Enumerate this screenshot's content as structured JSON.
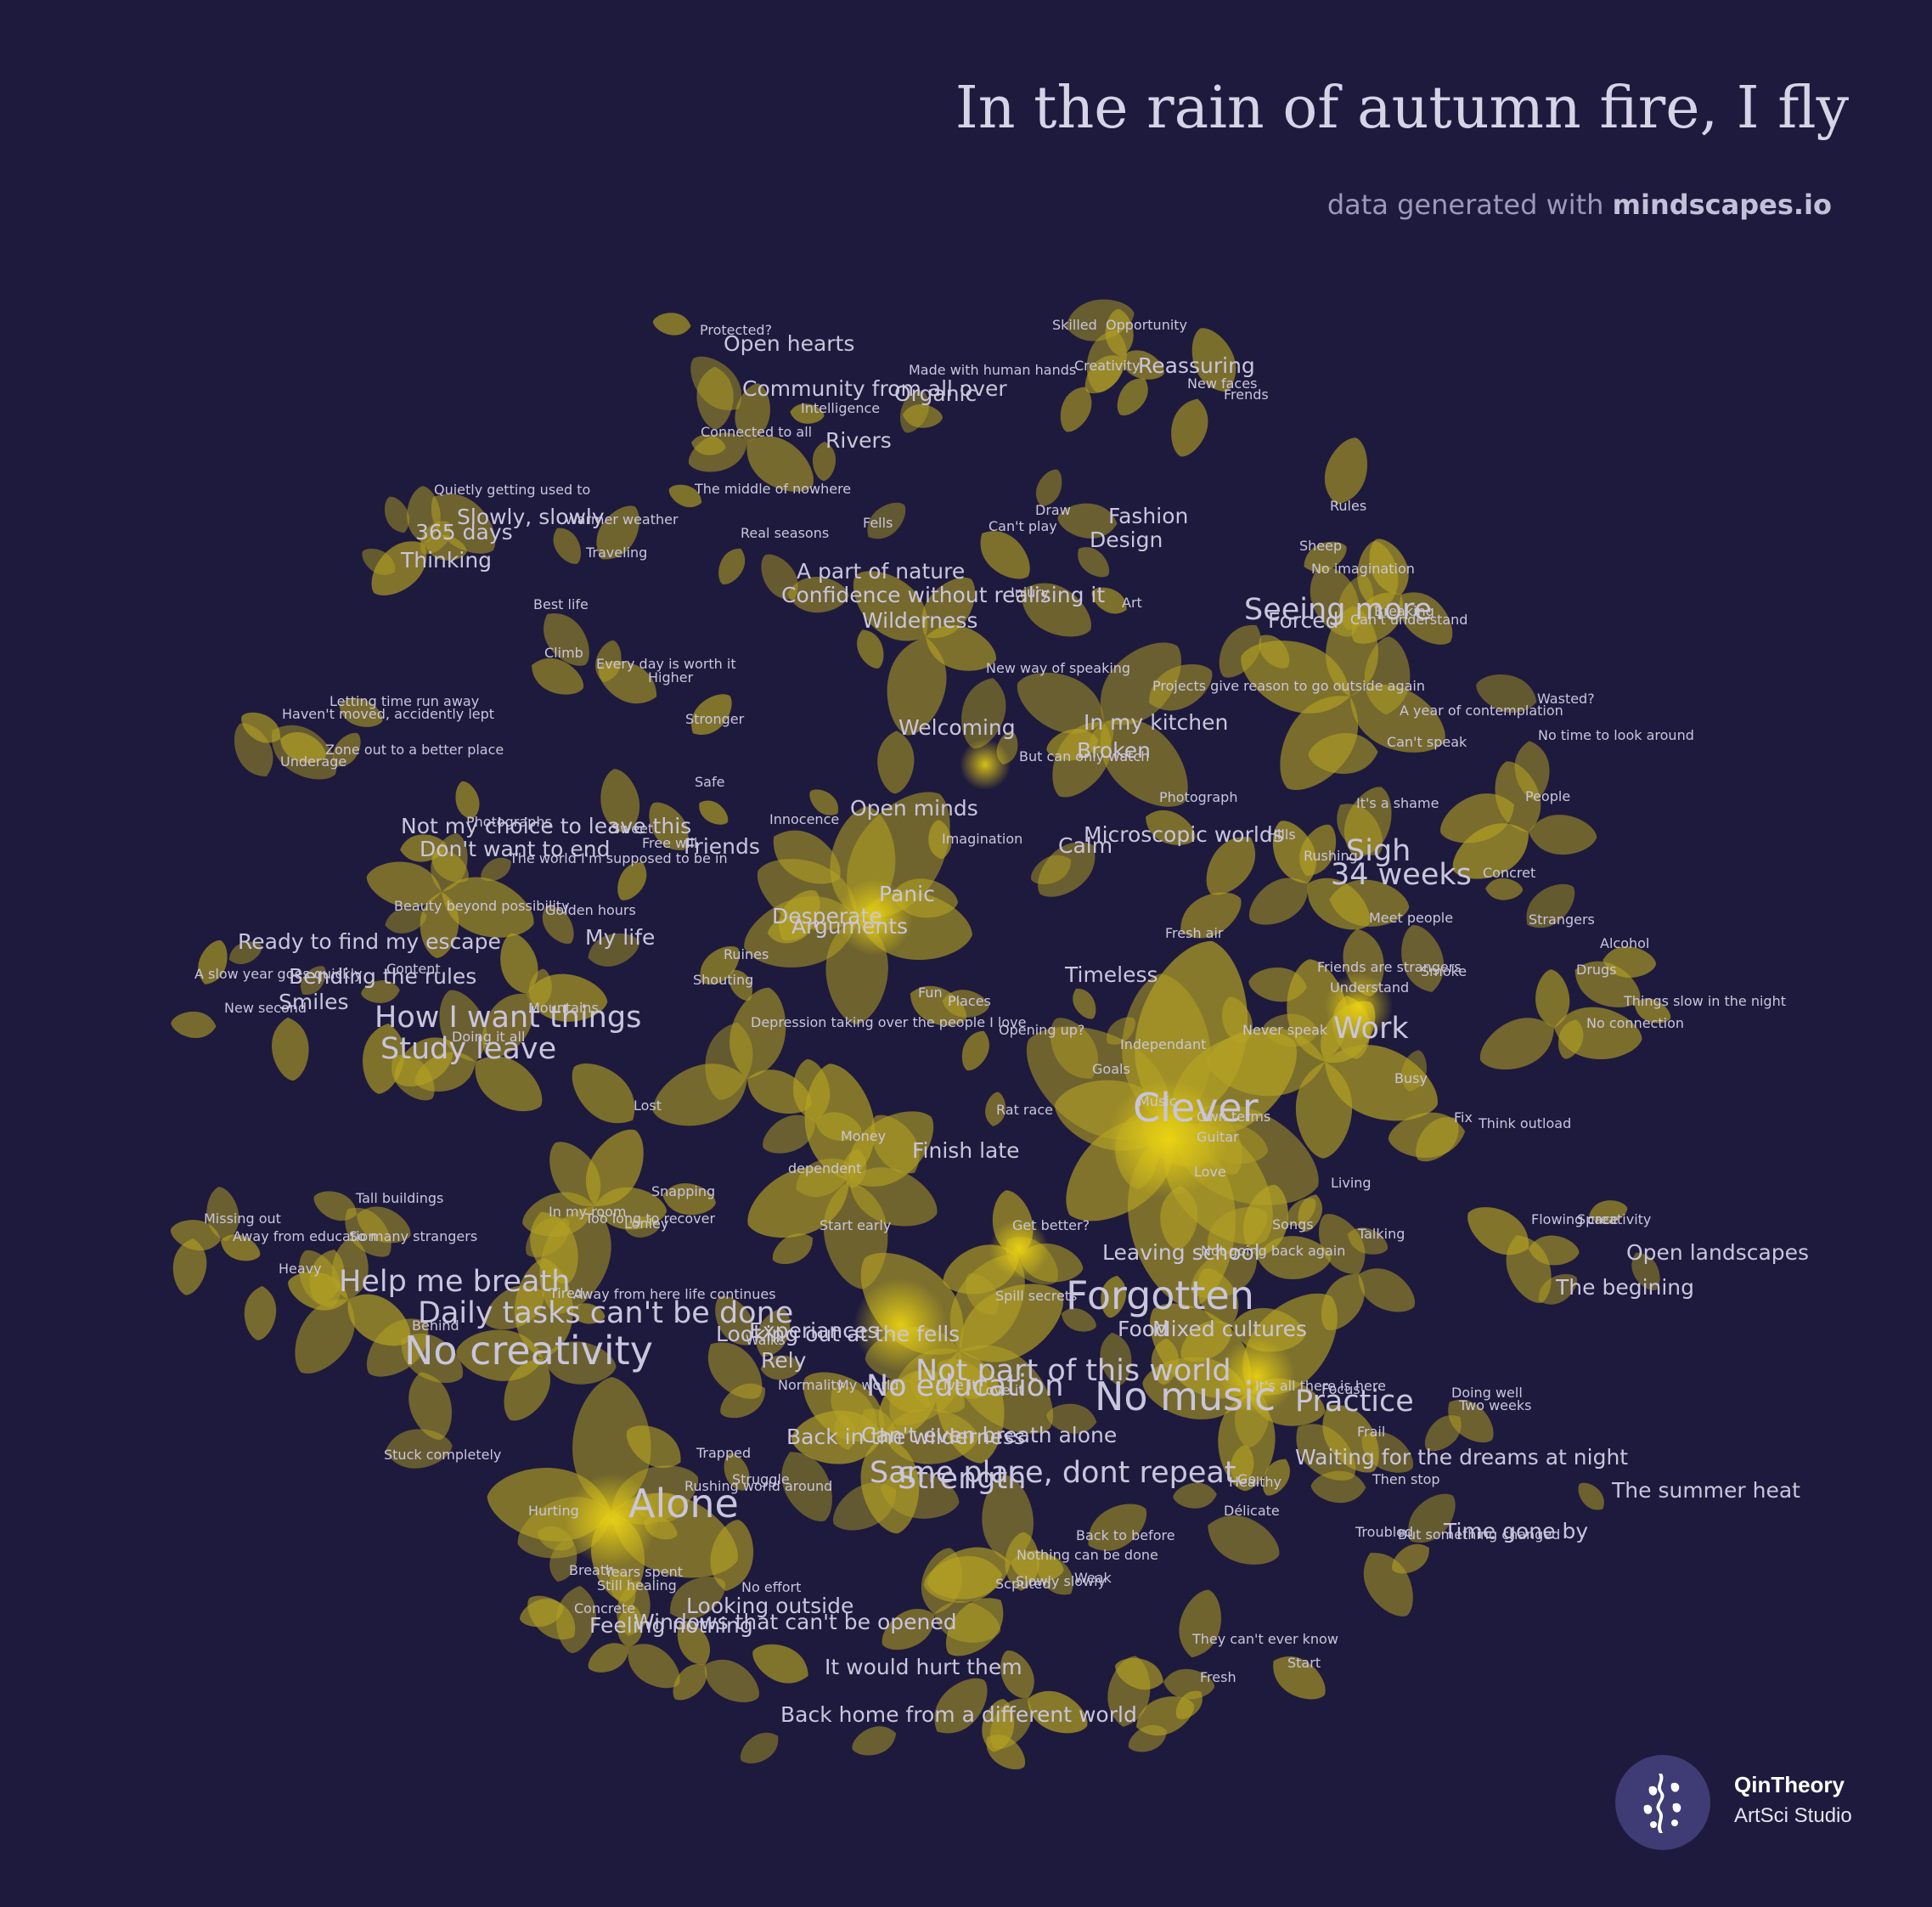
{
  "header": {
    "title": "In the rain of autumn fire, I fly",
    "subtitle_prefix": "data generated with ",
    "subtitle_brand": "mindscapes.io"
  },
  "branding": {
    "name": "QinTheory",
    "tagline": "ArtSci Studio"
  },
  "colors": {
    "background": "#1e1a3d",
    "petal": "#b5a323",
    "petal_bright": "#ead11a",
    "label": "#c9c5dc",
    "badge": "#3f3b74"
  },
  "words": [
    {
      "text": "Protected?",
      "size": "s"
    },
    {
      "text": "Open hearts",
      "size": "m"
    },
    {
      "text": "Community from all over",
      "size": "m"
    },
    {
      "text": "Organic",
      "size": "m"
    },
    {
      "text": "Intelligence",
      "size": "s"
    },
    {
      "text": "Connected to all",
      "size": "s"
    },
    {
      "text": "Rivers",
      "size": "m"
    },
    {
      "text": "The middle of nowhere",
      "size": "s"
    },
    {
      "text": "Fells",
      "size": "s"
    },
    {
      "text": "Real seasons",
      "size": "s"
    },
    {
      "text": "Skilled",
      "size": "s"
    },
    {
      "text": "Opportunity",
      "size": "s"
    },
    {
      "text": "Made with human hands",
      "size": "s"
    },
    {
      "text": "Creativity",
      "size": "s"
    },
    {
      "text": "Reassuring",
      "size": "m"
    },
    {
      "text": "New faces",
      "size": "s"
    },
    {
      "text": "Frends",
      "size": "s"
    },
    {
      "text": "Quietly getting used to",
      "size": "s"
    },
    {
      "text": "Slowly, slowly",
      "size": "m"
    },
    {
      "text": "Warmer weather",
      "size": "s"
    },
    {
      "text": "365 days",
      "size": "m"
    },
    {
      "text": "Thinking",
      "size": "m"
    },
    {
      "text": "Traveling",
      "size": "s"
    },
    {
      "text": "Best life",
      "size": "s"
    },
    {
      "text": "Climb",
      "size": "s"
    },
    {
      "text": "Every day is worth it",
      "size": "s"
    },
    {
      "text": "Higher",
      "size": "s"
    },
    {
      "text": "Stronger",
      "size": "s"
    },
    {
      "text": "Safe",
      "size": "s"
    },
    {
      "text": "Letting time run away",
      "size": "s"
    },
    {
      "text": "Haven't moved, accidently lept",
      "size": "s"
    },
    {
      "text": "Zone out to a better place",
      "size": "s"
    },
    {
      "text": "Underage",
      "size": "s"
    },
    {
      "text": "Draw",
      "size": "s"
    },
    {
      "text": "Can't play",
      "size": "s"
    },
    {
      "text": "Fashion",
      "size": "m"
    },
    {
      "text": "Design",
      "size": "m"
    },
    {
      "text": "A part of nature",
      "size": "m"
    },
    {
      "text": "Confidence without realising it",
      "size": "m"
    },
    {
      "text": "Injury",
      "size": "s"
    },
    {
      "text": "Art",
      "size": "s"
    },
    {
      "text": "Wilderness",
      "size": "m"
    },
    {
      "text": "Rules",
      "size": "s"
    },
    {
      "text": "Sheep",
      "size": "s"
    },
    {
      "text": "No imagination",
      "size": "s"
    },
    {
      "text": "Seeing more",
      "size": "l"
    },
    {
      "text": "Forced",
      "size": "m"
    },
    {
      "text": "Breaking",
      "size": "s"
    },
    {
      "text": "Can't understand",
      "size": "s"
    },
    {
      "text": "New way of speaking",
      "size": "s"
    },
    {
      "text": "Projects give reason to go outside again",
      "size": "s"
    },
    {
      "text": "Welcoming",
      "size": "m"
    },
    {
      "text": "In my kitchen",
      "size": "m"
    },
    {
      "text": "Broken",
      "size": "m"
    },
    {
      "text": "But can only watch",
      "size": "s"
    },
    {
      "text": "A year of contemplation",
      "size": "s"
    },
    {
      "text": "Wasted?",
      "size": "s"
    },
    {
      "text": "Can't speak",
      "size": "s"
    },
    {
      "text": "No time to look around",
      "size": "s"
    },
    {
      "text": "It's a shame",
      "size": "s"
    },
    {
      "text": "People",
      "size": "s"
    },
    {
      "text": "Not my choice to leave this",
      "size": "m"
    },
    {
      "text": "Photographs",
      "size": "s"
    },
    {
      "text": "Sweet",
      "size": "s"
    },
    {
      "text": "Don't want to end",
      "size": "m"
    },
    {
      "text": "Free will",
      "size": "s"
    },
    {
      "text": "The world I'm supposed to be in",
      "size": "s"
    },
    {
      "text": "Friends",
      "size": "m"
    },
    {
      "text": "Innocence",
      "size": "s"
    },
    {
      "text": "Open minds",
      "size": "m"
    },
    {
      "text": "Imagination",
      "size": "s"
    },
    {
      "text": "Photograph",
      "size": "s"
    },
    {
      "text": "Microscopic worlds",
      "size": "m"
    },
    {
      "text": "Calm",
      "size": "m"
    },
    {
      "text": "Hills",
      "size": "s"
    },
    {
      "text": "Rushing",
      "size": "s"
    },
    {
      "text": "Sigh",
      "size": "l"
    },
    {
      "text": "34 weeks",
      "size": "l"
    },
    {
      "text": "Concret",
      "size": "s"
    },
    {
      "text": "Beauty beyond possibility",
      "size": "s"
    },
    {
      "text": "Golden hours",
      "size": "s"
    },
    {
      "text": "Panic",
      "size": "m"
    },
    {
      "text": "Desperate",
      "size": "m"
    },
    {
      "text": "Arguments",
      "size": "m"
    },
    {
      "text": "My life",
      "size": "m"
    },
    {
      "text": "Ready to find my escape",
      "size": "m"
    },
    {
      "text": "Ruines",
      "size": "s"
    },
    {
      "text": "Shouting",
      "size": "s"
    },
    {
      "text": "Fresh air",
      "size": "s"
    },
    {
      "text": "Meet people",
      "size": "s"
    },
    {
      "text": "Strangers",
      "size": "s"
    },
    {
      "text": "Alcohol",
      "size": "s"
    },
    {
      "text": "Drugs",
      "size": "s"
    },
    {
      "text": "Things slow in the night",
      "size": "s"
    },
    {
      "text": "No connection",
      "size": "s"
    },
    {
      "text": "A slow year goes quickly",
      "size": "s"
    },
    {
      "text": "Content",
      "size": "s"
    },
    {
      "text": "Bending the rules",
      "size": "m"
    },
    {
      "text": "New second",
      "size": "s"
    },
    {
      "text": "Smiles",
      "size": "m"
    },
    {
      "text": "Mountains",
      "size": "s"
    },
    {
      "text": "How I want things",
      "size": "l"
    },
    {
      "text": "Doing it all",
      "size": "s"
    },
    {
      "text": "Study leave",
      "size": "l"
    },
    {
      "text": "Timeless",
      "size": "m"
    },
    {
      "text": "Fun",
      "size": "s"
    },
    {
      "text": "Places",
      "size": "s"
    },
    {
      "text": "Depression taking over the people I love",
      "size": "s"
    },
    {
      "text": "Opening up?",
      "size": "s"
    },
    {
      "text": "Friends are strangers",
      "size": "s"
    },
    {
      "text": "Smoke",
      "size": "s"
    },
    {
      "text": "Understand",
      "size": "s"
    },
    {
      "text": "Never speak",
      "size": "s"
    },
    {
      "text": "Work",
      "size": "l"
    },
    {
      "text": "Independant",
      "size": "s"
    },
    {
      "text": "Goals",
      "size": "s"
    },
    {
      "text": "Busy",
      "size": "s"
    },
    {
      "text": "Fix",
      "size": "s"
    },
    {
      "text": "Think outload",
      "size": "s"
    },
    {
      "text": "Lost",
      "size": "s"
    },
    {
      "text": "Rat race",
      "size": "s"
    },
    {
      "text": "Music",
      "size": "s"
    },
    {
      "text": "Clever",
      "size": "xl"
    },
    {
      "text": "Own terms",
      "size": "s"
    },
    {
      "text": "Guitar",
      "size": "s"
    },
    {
      "text": "Money",
      "size": "s"
    },
    {
      "text": "Finish late",
      "size": "m"
    },
    {
      "text": "dependent",
      "size": "s"
    },
    {
      "text": "Love",
      "size": "s"
    },
    {
      "text": "Living",
      "size": "s"
    },
    {
      "text": "Snapping",
      "size": "s"
    },
    {
      "text": "Tall buildings",
      "size": "s"
    },
    {
      "text": "In my room",
      "size": "s"
    },
    {
      "text": "Too long to recover",
      "size": "s"
    },
    {
      "text": "Lonley",
      "size": "s"
    },
    {
      "text": "Start early",
      "size": "s"
    },
    {
      "text": "Get better?",
      "size": "s"
    },
    {
      "text": "Songs",
      "size": "s"
    },
    {
      "text": "Talking",
      "size": "s"
    },
    {
      "text": "Leaving school",
      "size": "m"
    },
    {
      "text": "Not going back again",
      "size": "s"
    },
    {
      "text": "Flowing creativity",
      "size": "s"
    },
    {
      "text": "Space",
      "size": "s"
    },
    {
      "text": "Open landscapes",
      "size": "m"
    },
    {
      "text": "The begining",
      "size": "m"
    },
    {
      "text": "Missing out",
      "size": "s"
    },
    {
      "text": "Away from education",
      "size": "s"
    },
    {
      "text": "So many strangers",
      "size": "s"
    },
    {
      "text": "Heavy",
      "size": "s"
    },
    {
      "text": "Help me breath",
      "size": "l"
    },
    {
      "text": "Tired",
      "size": "s"
    },
    {
      "text": "Away from here life continues",
      "size": "s"
    },
    {
      "text": "Daily tasks can't be done",
      "size": "l"
    },
    {
      "text": "Behind",
      "size": "s"
    },
    {
      "text": "Spill secrets",
      "size": "s"
    },
    {
      "text": "Forgotten",
      "size": "xl"
    },
    {
      "text": "Mixed cultures",
      "size": "m"
    },
    {
      "text": "Food",
      "size": "m"
    },
    {
      "text": "Experiances",
      "size": "m"
    },
    {
      "text": "Looking out at the fells",
      "size": "m"
    },
    {
      "text": "Walks",
      "size": "s"
    },
    {
      "text": "Rely",
      "size": "m"
    },
    {
      "text": "Not part of this world",
      "size": "l"
    },
    {
      "text": "No music",
      "size": "xl"
    },
    {
      "text": "No education",
      "size": "l"
    },
    {
      "text": "No creativity",
      "size": "xl"
    },
    {
      "text": "Normality",
      "size": "s"
    },
    {
      "text": "My world",
      "size": "s"
    },
    {
      "text": "Live it",
      "size": "s"
    },
    {
      "text": "Love it",
      "size": "s"
    },
    {
      "text": "Doing well",
      "size": "s"
    },
    {
      "text": "It's all there is here",
      "size": "s"
    },
    {
      "text": "Practice",
      "size": "l"
    },
    {
      "text": "Focus",
      "size": "s"
    },
    {
      "text": "Two weeks",
      "size": "s"
    },
    {
      "text": "Frail",
      "size": "s"
    },
    {
      "text": "Waiting for the dreams at night",
      "size": "m"
    },
    {
      "text": "Stuck completely",
      "size": "s"
    },
    {
      "text": "Trapped",
      "size": "s"
    },
    {
      "text": "Can't even breath alone",
      "size": "m"
    },
    {
      "text": "Back in the wilderness",
      "size": "m"
    },
    {
      "text": "Struggle",
      "size": "s"
    },
    {
      "text": "Strength",
      "size": "l"
    },
    {
      "text": "Same place, dont repeat",
      "size": "l"
    },
    {
      "text": "Healthy",
      "size": "s"
    },
    {
      "text": "Then stop",
      "size": "s"
    },
    {
      "text": "The summer heat",
      "size": "m"
    },
    {
      "text": "Délicate",
      "size": "s"
    },
    {
      "text": "Hurting",
      "size": "s"
    },
    {
      "text": "Alone",
      "size": "xl"
    },
    {
      "text": "Rushing world around",
      "size": "s"
    },
    {
      "text": "Troubled",
      "size": "s"
    },
    {
      "text": "Time gone by",
      "size": "m"
    },
    {
      "text": "But something changed",
      "size": "s"
    },
    {
      "text": "Back to before",
      "size": "s"
    },
    {
      "text": "Slowly slowly",
      "size": "s"
    },
    {
      "text": "Still healing",
      "size": "s"
    },
    {
      "text": "Scputed",
      "size": "s"
    },
    {
      "text": "Years spent",
      "size": "s"
    },
    {
      "text": "No effort",
      "size": "s"
    },
    {
      "text": "Weak",
      "size": "s"
    },
    {
      "text": "Go.",
      "size": "s"
    },
    {
      "text": "Nothing can be done",
      "size": "s"
    },
    {
      "text": "Breath",
      "size": "s"
    },
    {
      "text": "Feeling nothing",
      "size": "m"
    },
    {
      "text": "Concrete",
      "size": "s"
    },
    {
      "text": "Looking outside",
      "size": "m"
    },
    {
      "text": "Windows that can't be opened",
      "size": "m"
    },
    {
      "text": "They can't ever know",
      "size": "s"
    },
    {
      "text": "Start",
      "size": "s"
    },
    {
      "text": "Fresh",
      "size": "s"
    },
    {
      "text": "It would hurt them",
      "size": "m"
    },
    {
      "text": "Back home from a different world",
      "size": "m"
    }
  ]
}
